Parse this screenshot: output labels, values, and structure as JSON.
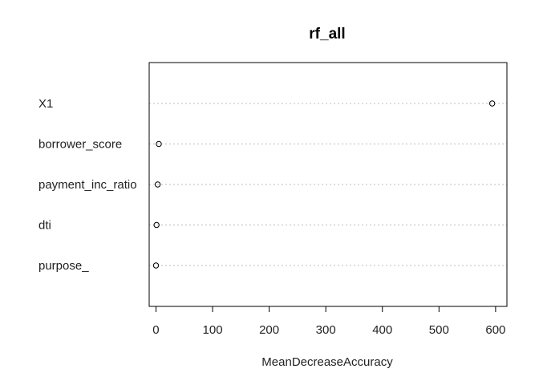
{
  "chart_data": {
    "type": "scatter",
    "title": "rf_all",
    "xlabel": "MeanDecreaseAccuracy",
    "ylabel": "",
    "xlim": [
      -12,
      620
    ],
    "xticks": [
      0,
      100,
      200,
      300,
      400,
      500,
      600
    ],
    "xtick_labels": [
      "0",
      "100",
      "200",
      "300",
      "400",
      "500",
      "600"
    ],
    "grid": "horizontal dotted per category",
    "categories": [
      "X1",
      "borrower_score",
      "payment_inc_ratio",
      "dti",
      "purpose_"
    ],
    "values": [
      594,
      5,
      3,
      1,
      0
    ],
    "marker": "open-circle",
    "colors": {
      "marker": "#000000",
      "grid": "#bdbdbd",
      "axis": "#000000",
      "text": "#222222"
    }
  }
}
